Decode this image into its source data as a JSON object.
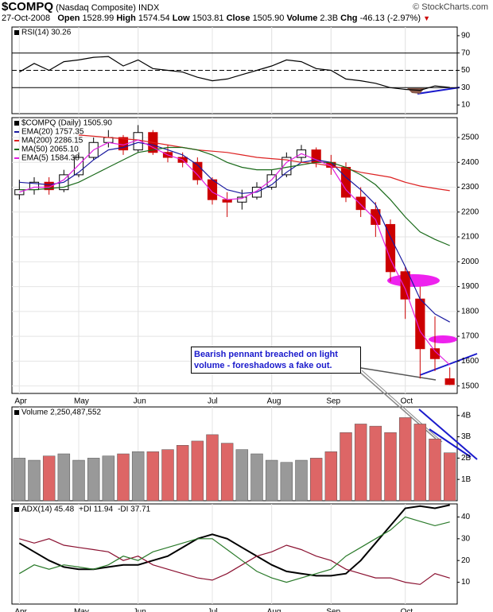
{
  "header": {
    "symbol": "$COMPQ",
    "name": "(Nasdaq Composite)",
    "exchange": "INDX",
    "watermark": "© StockCharts.com",
    "date": "27-Oct-2008",
    "open_label": "Open",
    "open": "1528.99",
    "high_label": "High",
    "high": "1574.54",
    "low_label": "Low",
    "low": "1503.81",
    "close_label": "Close",
    "close": "1505.90",
    "volume_label": "Volume",
    "volume": "2.3B",
    "chg_label": "Chg",
    "chg": "-46.13 (-2.97%)"
  },
  "annotation": "Bearish pennant breached on light volume - foreshadows a fake out.",
  "chart_data": [
    {
      "type": "line",
      "title": "RSI(14) 30.26",
      "ylim": [
        0,
        100
      ],
      "yticks": [
        10,
        30,
        50,
        70,
        90
      ],
      "levels": [
        30,
        50,
        70
      ],
      "series": [
        {
          "color": "#000000",
          "values": [
            48,
            58,
            50,
            60,
            62,
            65,
            66,
            55,
            62,
            52,
            50,
            48,
            42,
            38,
            40,
            45,
            50,
            55,
            62,
            60,
            52,
            50,
            40,
            38,
            35,
            30,
            28,
            27,
            32,
            30.26
          ]
        }
      ]
    },
    {
      "type": "candlestick",
      "title": "$COMPQ (Daily) 1505.90",
      "grid": true,
      "up_color": "#000000",
      "down_color": "#cc0000",
      "categories": [
        "Apr",
        null,
        null,
        null,
        "May",
        null,
        null,
        null,
        "Jun",
        null,
        null,
        null,
        null,
        "Jul",
        null,
        null,
        null,
        "Aug",
        null,
        null,
        null,
        "Sep",
        null,
        null,
        null,
        null,
        "Oct",
        null,
        null,
        null
      ],
      "open": [
        2270,
        2290,
        2320,
        2290,
        2350,
        2420,
        2480,
        2500,
        2450,
        2520,
        2440,
        2420,
        2400,
        2330,
        2250,
        2240,
        2260,
        2300,
        2350,
        2420,
        2450,
        2400,
        2380,
        2260,
        2210,
        2150,
        1960,
        1850,
        1650,
        1528.99
      ],
      "high": [
        2330,
        2340,
        2340,
        2370,
        2440,
        2500,
        2530,
        2510,
        2550,
        2530,
        2470,
        2440,
        2420,
        2340,
        2280,
        2290,
        2320,
        2370,
        2440,
        2470,
        2460,
        2430,
        2400,
        2300,
        2240,
        2170,
        1980,
        1900,
        1780,
        1574.54
      ],
      "low": [
        2250,
        2270,
        2270,
        2280,
        2340,
        2410,
        2460,
        2430,
        2440,
        2430,
        2400,
        2380,
        2310,
        2230,
        2180,
        2210,
        2250,
        2290,
        2340,
        2400,
        2380,
        2350,
        2240,
        2180,
        2100,
        1920,
        1770,
        1530,
        1560,
        1503.81
      ],
      "close": [
        2290,
        2320,
        2290,
        2350,
        2420,
        2480,
        2500,
        2450,
        2520,
        2440,
        2420,
        2400,
        2330,
        2250,
        2240,
        2260,
        2300,
        2350,
        2420,
        2450,
        2400,
        2380,
        2260,
        2210,
        2150,
        1960,
        1850,
        1650,
        1610,
        1505.9
      ],
      "ylim": [
        1470,
        2580
      ],
      "yticks": [
        1500,
        1600,
        1700,
        1800,
        1900,
        2000,
        2100,
        2200,
        2300,
        2400,
        2500
      ],
      "series": [
        {
          "name": "EMA(20) 1757.35",
          "color": "#1a1aa0",
          "values": [
            2320,
            2315,
            2310,
            2320,
            2360,
            2410,
            2450,
            2460,
            2480,
            2470,
            2450,
            2430,
            2390,
            2330,
            2290,
            2275,
            2280,
            2310,
            2360,
            2400,
            2410,
            2400,
            2340,
            2290,
            2230,
            2100,
            1980,
            1850,
            1790,
            1757.35
          ]
        },
        {
          "name": "MA(200) 2286.15",
          "color": "#dd2222",
          "values": [
            null,
            null,
            null,
            null,
            2510,
            2505,
            2500,
            2495,
            2490,
            2480,
            2470,
            2460,
            2450,
            2445,
            2440,
            2430,
            2420,
            2415,
            2410,
            2400,
            2395,
            2385,
            2375,
            2360,
            2350,
            2340,
            2320,
            2305,
            2295,
            2286.15
          ]
        },
        {
          "name": "MA(50) 2065.10",
          "color": "#1a6a1a",
          "values": [
            2290,
            2290,
            2295,
            2300,
            2320,
            2350,
            2380,
            2410,
            2440,
            2450,
            2460,
            2460,
            2450,
            2430,
            2400,
            2380,
            2370,
            2370,
            2380,
            2390,
            2400,
            2400,
            2380,
            2350,
            2310,
            2250,
            2180,
            2120,
            2090,
            2065.1
          ]
        },
        {
          "name": "EMA(5) 1584.38",
          "color": "#e020e0",
          "values": [
            2280,
            2300,
            2300,
            2330,
            2390,
            2450,
            2480,
            2470,
            2490,
            2460,
            2430,
            2410,
            2350,
            2280,
            2250,
            2255,
            2285,
            2330,
            2400,
            2435,
            2410,
            2385,
            2290,
            2230,
            2170,
            2010,
            1890,
            1720,
            1640,
            1584.38
          ]
        }
      ]
    },
    {
      "type": "bar",
      "title": "Volume 2,250,487,552",
      "up_color": "#999999",
      "down_color": "#dd6666",
      "values": [
        2.0,
        1.9,
        2.1,
        2.2,
        1.9,
        2.0,
        2.1,
        2.2,
        2.3,
        2.3,
        2.4,
        2.6,
        2.8,
        3.1,
        2.7,
        2.4,
        2.2,
        1.9,
        1.8,
        1.9,
        2.0,
        2.3,
        3.2,
        3.6,
        3.5,
        3.2,
        3.9,
        3.6,
        2.9,
        2.25
      ],
      "ylim": [
        0,
        4.4
      ],
      "yticks": [
        {
          "value": 1,
          "label": "1B"
        },
        {
          "value": 2,
          "label": "2B"
        },
        {
          "value": 3,
          "label": "3B"
        },
        {
          "value": 4,
          "label": "4B"
        }
      ]
    },
    {
      "type": "line",
      "categories": [
        "Apr",
        null,
        null,
        null,
        "May",
        null,
        null,
        null,
        "Jun",
        null,
        null,
        null,
        null,
        "Jul",
        null,
        null,
        null,
        "Aug",
        null,
        null,
        null,
        "Sep",
        null,
        null,
        null,
        null,
        "Oct",
        null,
        null,
        null
      ],
      "ylim": [
        0,
        46
      ],
      "yticks": [
        10,
        20,
        30,
        40
      ],
      "series": [
        {
          "name": "ADX(14) 45.48",
          "color": "#000000",
          "values": [
            28,
            24,
            20,
            17,
            16,
            16,
            17,
            18,
            18,
            20,
            22,
            26,
            30,
            32,
            30,
            26,
            22,
            18,
            15,
            14,
            13,
            13,
            14,
            20,
            28,
            36,
            44,
            45,
            44,
            45.48
          ]
        },
        {
          "name": "+DI 11.94",
          "color": "#8a1030",
          "values": [
            30,
            28,
            30,
            27,
            26,
            25,
            24,
            20,
            22,
            18,
            16,
            14,
            12,
            11,
            14,
            18,
            22,
            24,
            27,
            25,
            22,
            20,
            16,
            14,
            12,
            12,
            10,
            9,
            14,
            11.94
          ]
        },
        {
          "name": "-DI 37.71",
          "color": "#2a7a2a",
          "values": [
            14,
            18,
            16,
            18,
            17,
            16,
            18,
            22,
            20,
            24,
            26,
            28,
            30,
            30,
            25,
            20,
            15,
            12,
            10,
            12,
            14,
            16,
            22,
            26,
            30,
            34,
            40,
            38,
            36,
            37.71
          ]
        }
      ]
    }
  ]
}
